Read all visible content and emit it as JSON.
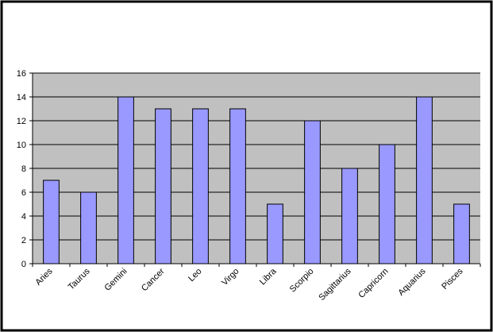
{
  "chart_data": {
    "type": "bar",
    "categories": [
      "Aries",
      "Taurus",
      "Gemini",
      "Cancer",
      "Leo",
      "Virgo",
      "Libra",
      "Scorpio",
      "Sagittarius",
      "Capricorn",
      "Aquarius",
      "Pisces"
    ],
    "values": [
      7,
      6,
      14,
      13,
      13,
      13,
      5,
      12,
      8,
      10,
      14,
      5
    ],
    "color": "#9999ff",
    "ylim": [
      0,
      16
    ],
    "yticks": [
      0,
      2,
      4,
      6,
      8,
      10,
      12,
      14,
      16
    ],
    "grid": true
  }
}
